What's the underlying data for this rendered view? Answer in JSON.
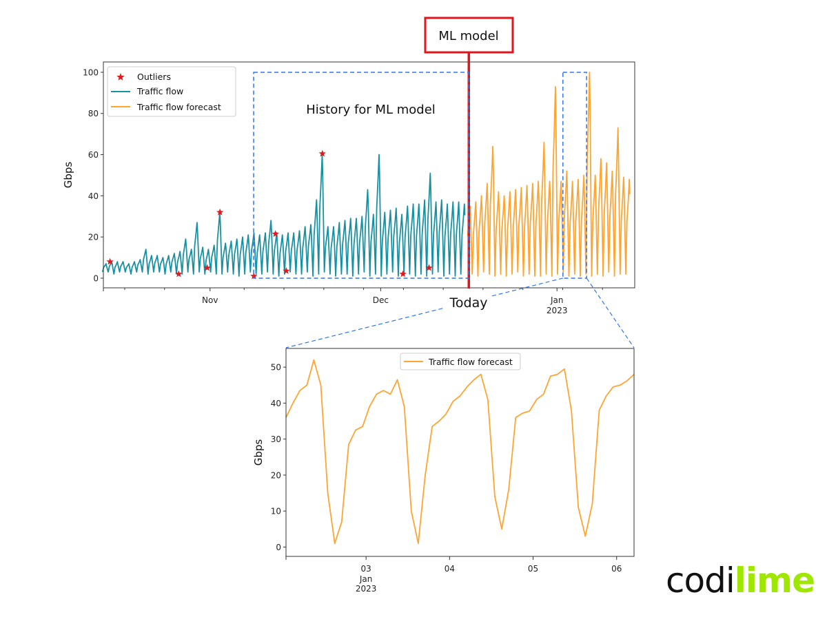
{
  "annotations": {
    "ml_model_label": "ML model",
    "today_label": "Today",
    "history_label": "History for ML model"
  },
  "brand": {
    "logo_text_1": "codi",
    "logo_text_2": "lime",
    "color_dark": "#111111",
    "color_lime": "#9fe600"
  },
  "colors": {
    "ml_marker": "#e0161c",
    "window_dashes": "#2f74f0"
  },
  "chart_data": [
    {
      "type": "line",
      "title": "",
      "xlabel": "",
      "ylabel": "Gbps",
      "ylim": [
        -4.7,
        105
      ],
      "xlim": [
        "2022-10-13T06:00",
        "2023-01-14T16:00"
      ],
      "grid": false,
      "yticks": [
        0,
        20,
        40,
        60,
        80,
        100
      ],
      "xticks": [
        {
          "date": "2022-11-01",
          "label": "Nov",
          "sublabel": ""
        },
        {
          "date": "2022-12-01",
          "label": "Dec",
          "sublabel": ""
        },
        {
          "date": "2023-01-01",
          "label": "Jan",
          "sublabel": "2023"
        }
      ],
      "minor_ticks": [
        "2022-10-17",
        "2022-10-24",
        "2022-11-07",
        "2022-11-14",
        "2022-11-21",
        "2022-11-28",
        "2022-12-05",
        "2022-12-12",
        "2022-12-19",
        "2022-12-26",
        "2023-01-02",
        "2023-01-09"
      ],
      "legend": {
        "position": "top-left",
        "entries": [
          "Outliers",
          "Traffic flow",
          "Traffic flow forecast"
        ]
      },
      "series": [
        {
          "name": "Traffic flow",
          "color": "#1791a1",
          "first_day": "2022-10-13",
          "daily_peaks": [
            7,
            8,
            8,
            8,
            7,
            8,
            9,
            14,
            11,
            11,
            10,
            11,
            12,
            13,
            19,
            14,
            27,
            15,
            14,
            16,
            32,
            17,
            18,
            19,
            20,
            21,
            22,
            21,
            22,
            28,
            22,
            21,
            22,
            22,
            23,
            25,
            26,
            38,
            60,
            25,
            25,
            27,
            28,
            29,
            29,
            30,
            43,
            31,
            60,
            32,
            33,
            34,
            31,
            35,
            36,
            36,
            38,
            51,
            37,
            38,
            36,
            37,
            37,
            36
          ],
          "daily_troughs": [
            3,
            3,
            2,
            3,
            3,
            2,
            3,
            3,
            2,
            3,
            3,
            2,
            3,
            2,
            2,
            3,
            2,
            3,
            2,
            3,
            2,
            2,
            3,
            2,
            1,
            2,
            3,
            2,
            2,
            3,
            2,
            1,
            2,
            3,
            2,
            2,
            3,
            1,
            2,
            3,
            2,
            1,
            2,
            2,
            1,
            2,
            3,
            1,
            2,
            1,
            2,
            3,
            1,
            2,
            2,
            1,
            2,
            1,
            2,
            3,
            1,
            2,
            1,
            2
          ]
        },
        {
          "name": "Traffic flow forecast",
          "color": "#ffa430",
          "first_day": "2022-12-16",
          "daily_peaks": [
            35,
            37,
            40,
            46,
            64,
            42,
            40,
            42,
            43,
            44,
            45,
            46,
            47,
            66,
            47,
            93,
            47,
            52,
            47,
            48,
            50,
            100,
            50,
            58,
            56,
            52,
            73,
            49,
            48
          ],
          "daily_troughs": [
            3,
            2,
            1,
            3,
            2,
            1,
            2,
            1,
            2,
            3,
            1,
            2,
            1,
            1,
            2,
            1,
            2,
            3,
            1,
            2,
            1,
            2,
            1,
            2,
            1,
            3,
            1,
            2,
            2
          ]
        }
      ],
      "outliers": {
        "name": "Outliers",
        "color": "#e31a1c",
        "points": [
          {
            "x": "2022-10-14T10:00",
            "y": 8
          },
          {
            "x": "2022-10-26T12:00",
            "y": 2
          },
          {
            "x": "2022-10-31T12:00",
            "y": 5
          },
          {
            "x": "2022-11-02T18:00",
            "y": 32
          },
          {
            "x": "2022-11-08T17:00",
            "y": 1
          },
          {
            "x": "2022-11-12T12:00",
            "y": 21.5
          },
          {
            "x": "2022-11-14T10:00",
            "y": 3.5
          },
          {
            "x": "2022-11-20T18:00",
            "y": 60.5
          },
          {
            "x": "2022-12-04T22:00",
            "y": 2
          },
          {
            "x": "2022-12-09T12:00",
            "y": 5
          }
        ]
      },
      "today": "2022-12-16T12:00",
      "history_window": {
        "start": "2022-11-08T16:00",
        "end": "2022-12-16T12:00",
        "ylim": [
          0,
          100
        ]
      },
      "zoom_window": {
        "start": "2023-01-02T01:00",
        "end": "2023-01-06T05:00",
        "ylim": [
          0,
          100
        ]
      }
    },
    {
      "type": "line",
      "title": "",
      "xlabel": "",
      "ylabel": "Gbps",
      "ylim": [
        -2.6,
        55.2
      ],
      "xlim": [
        "2023-01-02T01:00",
        "2023-01-06T05:00"
      ],
      "grid": false,
      "yticks": [
        0,
        10,
        20,
        30,
        40,
        50
      ],
      "xticks": [
        {
          "date": "2023-01-03",
          "label": "03",
          "sublabel": "Jan",
          "sublabel2": "2023"
        },
        {
          "date": "2023-01-04",
          "label": "04",
          "sublabel": "",
          "sublabel2": ""
        },
        {
          "date": "2023-01-05",
          "label": "05",
          "sublabel": "",
          "sublabel2": ""
        },
        {
          "date": "2023-01-06",
          "label": "06",
          "sublabel": "",
          "sublabel2": ""
        }
      ],
      "legend": {
        "position": "top-center",
        "entries": [
          "Traffic flow forecast"
        ]
      },
      "series": [
        {
          "name": "Traffic flow forecast",
          "color": "#ffa430",
          "x_start": "2023-01-02T01:00",
          "interval_hours": 2,
          "values": [
            36,
            40,
            43.5,
            45,
            52,
            45,
            15,
            1,
            7,
            28.5,
            32.5,
            33.5,
            39,
            42.5,
            43.5,
            42.5,
            46.5,
            39,
            10,
            1,
            20,
            33.5,
            35,
            37,
            40.5,
            42,
            44.5,
            46.5,
            48,
            41,
            14,
            5,
            16,
            36,
            37.2,
            37.8,
            41,
            42.5,
            47.5,
            48,
            49.5,
            38,
            11,
            3,
            12,
            38,
            42,
            44.5,
            45,
            46.2,
            48
          ]
        }
      ]
    }
  ]
}
